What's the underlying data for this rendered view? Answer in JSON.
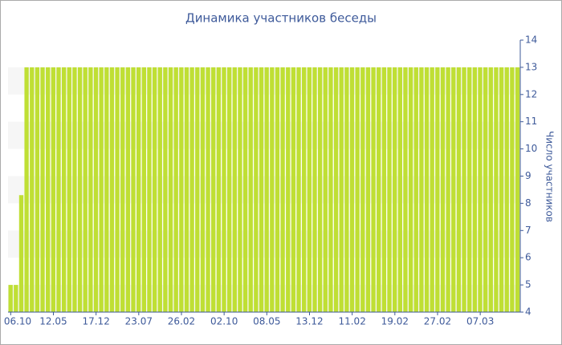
{
  "chart_data": {
    "type": "bar",
    "title": "Динамика участников беседы",
    "y_axis_label": "Число участников",
    "categories": [
      "06.10",
      null,
      null,
      null,
      null,
      null,
      null,
      null,
      "12.05",
      null,
      null,
      null,
      null,
      null,
      null,
      null,
      "17.12",
      null,
      null,
      null,
      null,
      null,
      null,
      null,
      "23.07",
      null,
      null,
      null,
      null,
      null,
      null,
      null,
      "26.02",
      null,
      null,
      null,
      null,
      null,
      null,
      null,
      "02.10",
      null,
      null,
      null,
      null,
      null,
      null,
      null,
      "08.05",
      null,
      null,
      null,
      null,
      null,
      null,
      null,
      "13.12",
      null,
      null,
      null,
      null,
      null,
      null,
      null,
      "11.02",
      null,
      null,
      null,
      null,
      null,
      null,
      null,
      "19.02",
      null,
      null,
      null,
      null,
      null,
      null,
      null,
      "27.02",
      null,
      null,
      null,
      null,
      null,
      null,
      null,
      "07.03",
      null,
      null,
      null,
      null,
      null,
      null,
      null
    ],
    "values": [
      5,
      5,
      8.3,
      13,
      13,
      13,
      13,
      13,
      13,
      13,
      13,
      13,
      13,
      13,
      13,
      13,
      13,
      13,
      13,
      13,
      13,
      13,
      13,
      13,
      13,
      13,
      13,
      13,
      13,
      13,
      13,
      13,
      13,
      13,
      13,
      13,
      13,
      13,
      13,
      13,
      13,
      13,
      13,
      13,
      13,
      13,
      13,
      13,
      13,
      13,
      13,
      13,
      13,
      13,
      13,
      13,
      13,
      13,
      13,
      13,
      13,
      13,
      13,
      13,
      13,
      13,
      13,
      13,
      13,
      13,
      13,
      13,
      13,
      13,
      13,
      13,
      13,
      13,
      13,
      13,
      13,
      13,
      13,
      13,
      13,
      13,
      13,
      13,
      13,
      13,
      13,
      13,
      13,
      13,
      13,
      13
    ],
    "color": "#bfdf34",
    "ylim": [
      4,
      14
    ],
    "yticks": [
      4,
      5,
      6,
      7,
      8,
      9,
      10,
      11,
      12,
      13,
      14
    ],
    "y_axis_side": "right",
    "grid": true
  }
}
